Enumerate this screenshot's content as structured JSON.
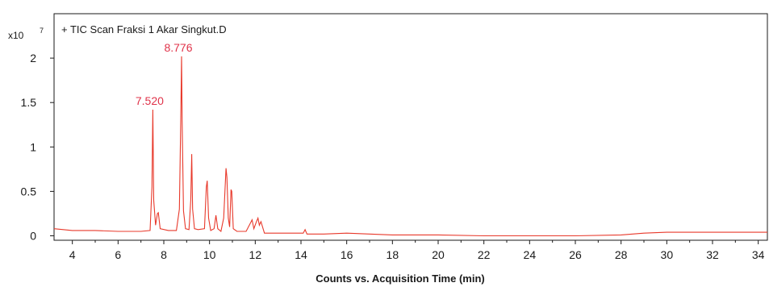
{
  "chart_data": {
    "type": "line",
    "title": "+ TIC Scan Fraksi 1 Akar Singkut.D",
    "xlabel": "Counts vs. Acquisition Time (min)",
    "ylabel": "",
    "y_scale_label": "x10",
    "y_scale_exponent": "7",
    "xlim": [
      3.2,
      34.4
    ],
    "ylim": [
      -0.05,
      2.5
    ],
    "x_ticks": [
      "4",
      "6",
      "8",
      "10",
      "12",
      "14",
      "16",
      "18",
      "20",
      "22",
      "24",
      "26",
      "28",
      "30",
      "32",
      "34"
    ],
    "y_ticks": [
      "0",
      "0.5",
      "1",
      "1.5",
      "2"
    ],
    "colors": {
      "trace": "#e8392b",
      "axis": "#1a1a1a",
      "peak_label": "#e0334a"
    },
    "series": [
      {
        "x": [
          3.2,
          4.0,
          5.0,
          6.0,
          7.0,
          7.4,
          7.48,
          7.52,
          7.56,
          7.64,
          7.72,
          7.76,
          7.84,
          8.2,
          8.55,
          8.68,
          8.74,
          8.776,
          8.8,
          8.86,
          8.95,
          9.1,
          9.18,
          9.22,
          9.26,
          9.34,
          9.5,
          9.78,
          9.86,
          9.9,
          9.96,
          10.05,
          10.2,
          10.28,
          10.36,
          10.5,
          10.62,
          10.72,
          10.76,
          10.82,
          10.88,
          10.94,
          10.97,
          11.04,
          11.2,
          11.6,
          11.8,
          11.86,
          11.94,
          12.05,
          12.12,
          12.18,
          12.25,
          12.4,
          13.0,
          14.1,
          14.18,
          14.26,
          15.0,
          16.0,
          17.0,
          18.0,
          20.0,
          22.0,
          24.0,
          26.0,
          28.0,
          29.0,
          30.0,
          31.0,
          32.0,
          33.0,
          34.4
        ],
        "y": [
          0.08,
          0.06,
          0.06,
          0.05,
          0.05,
          0.06,
          0.55,
          1.42,
          0.4,
          0.12,
          0.25,
          0.26,
          0.08,
          0.06,
          0.06,
          0.3,
          1.3,
          2.02,
          1.3,
          0.28,
          0.08,
          0.07,
          0.4,
          0.92,
          0.3,
          0.08,
          0.07,
          0.08,
          0.55,
          0.62,
          0.2,
          0.06,
          0.08,
          0.23,
          0.08,
          0.05,
          0.2,
          0.76,
          0.66,
          0.2,
          0.1,
          0.52,
          0.5,
          0.08,
          0.05,
          0.05,
          0.15,
          0.18,
          0.08,
          0.16,
          0.2,
          0.12,
          0.16,
          0.03,
          0.03,
          0.03,
          0.07,
          0.02,
          0.02,
          0.03,
          0.02,
          0.01,
          0.01,
          0.0,
          0.0,
          0.0,
          0.01,
          0.03,
          0.04,
          0.04,
          0.04,
          0.04,
          0.04
        ]
      }
    ],
    "annotations": [
      {
        "x": 8.776,
        "y": 2.02,
        "text": "8.776"
      },
      {
        "x": 7.52,
        "y": 1.42,
        "text": "7.520"
      }
    ]
  }
}
